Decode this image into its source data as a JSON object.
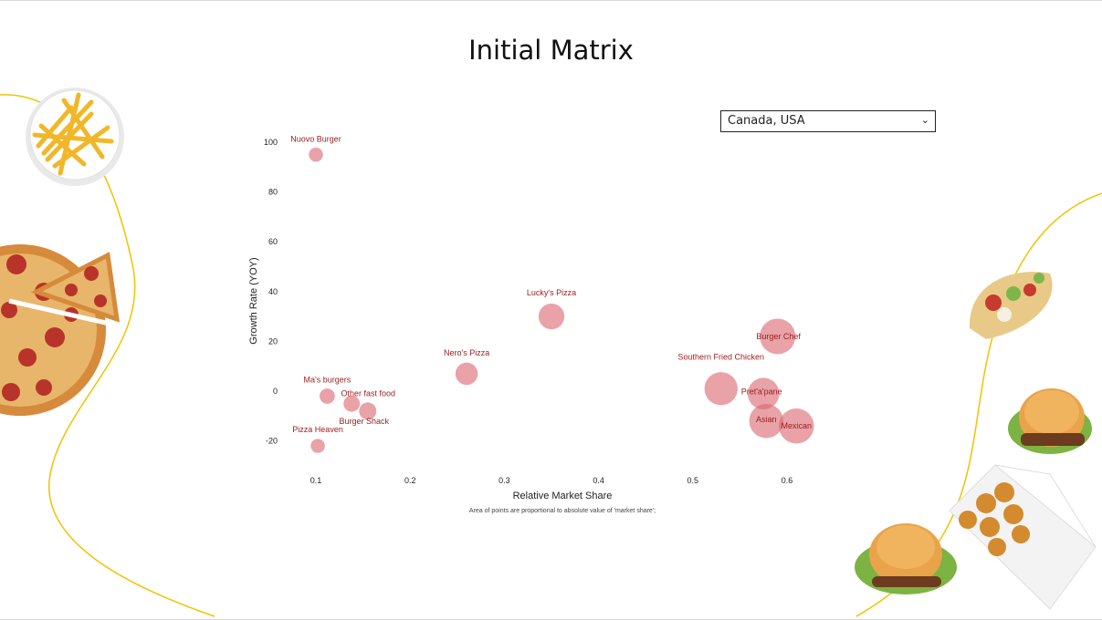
{
  "page": {
    "title": "Initial Matrix"
  },
  "filter": {
    "selected": "Canada, USA"
  },
  "colors": {
    "bubble": "#d9646e",
    "label": "#9a1c1c",
    "accent_curve": "#f2c200"
  },
  "decorations": [
    "fries-bowl-image",
    "pizza-image",
    "taco-image",
    "burger-image",
    "nuggets-box-image",
    "burger-image-2"
  ],
  "chart_data": {
    "type": "scatter",
    "title": "",
    "xlabel": "Relative Market Share",
    "ylabel": "Growth Rate (YOY)",
    "xlim": [
      0.05,
      0.65
    ],
    "ylim": [
      -30,
      105
    ],
    "xticks": [
      0.1,
      0.2,
      0.3,
      0.4,
      0.5,
      0.6
    ],
    "yticks": [
      -20,
      0,
      20,
      40,
      60,
      80,
      100
    ],
    "xtick_labels": [
      "0.1",
      "0.2",
      "0.3",
      "0.4",
      "0.5",
      "0.6"
    ],
    "ytick_labels": [
      "-20",
      "0",
      "20",
      "40",
      "60",
      "80",
      "100"
    ],
    "note": "Area of points are proportional to absolute value of 'market share';",
    "grid": false,
    "points": [
      {
        "name": "Nuovo Burger",
        "x": 0.1,
        "y": 95,
        "size": 0.6
      },
      {
        "name": "Lucky's Pizza",
        "x": 0.35,
        "y": 30,
        "size": 2.0
      },
      {
        "name": "Nero's Pizza",
        "x": 0.26,
        "y": 7,
        "size": 1.5
      },
      {
        "name": "Ma's burgers",
        "x": 0.112,
        "y": -2,
        "size": 0.7
      },
      {
        "name": "Other fast food",
        "x": 0.138,
        "y": -5,
        "size": 0.8
      },
      {
        "name": "Burger Shack",
        "x": 0.155,
        "y": -8,
        "size": 0.9
      },
      {
        "name": "Pizza Heaven",
        "x": 0.102,
        "y": -22,
        "size": 0.6
      },
      {
        "name": "Southern Fried Chicken",
        "x": 0.53,
        "y": 1,
        "size": 3.3
      },
      {
        "name": "Burger Chef",
        "x": 0.59,
        "y": 22,
        "size": 3.8
      },
      {
        "name": "Pret'a'pane",
        "x": 0.575,
        "y": -1,
        "size": 3.0
      },
      {
        "name": "Asian",
        "x": 0.578,
        "y": -12,
        "size": 3.5
      },
      {
        "name": "Mexican",
        "x": 0.61,
        "y": -14,
        "size": 3.7
      }
    ]
  }
}
